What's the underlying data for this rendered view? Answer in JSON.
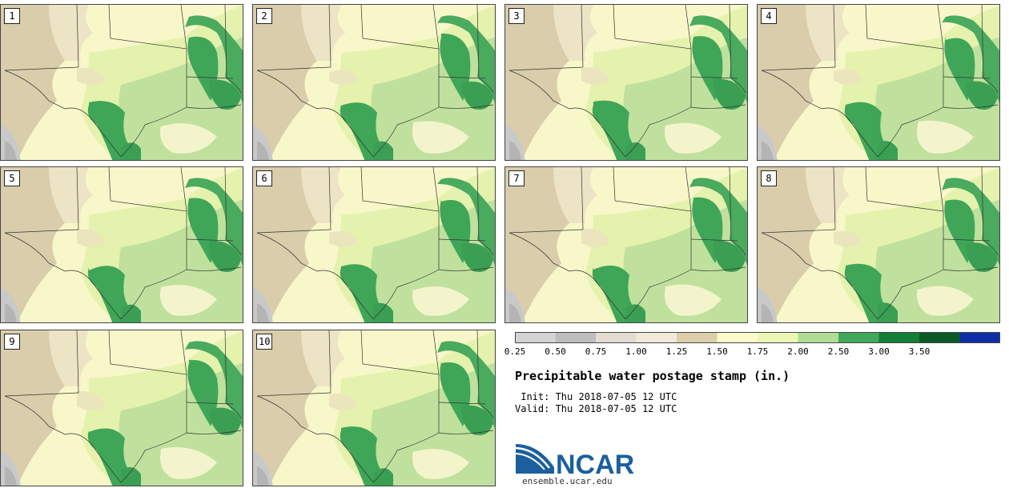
{
  "stamps": [
    {
      "label": "1"
    },
    {
      "label": "2"
    },
    {
      "label": "3"
    },
    {
      "label": "4"
    },
    {
      "label": "5"
    },
    {
      "label": "6"
    },
    {
      "label": "7"
    },
    {
      "label": "8"
    },
    {
      "label": "9"
    },
    {
      "label": "10"
    }
  ],
  "colorbar": {
    "ticks": [
      "0.25",
      "0.50",
      "0.75",
      "1.00",
      "1.25",
      "1.50",
      "1.75",
      "2.00",
      "2.50",
      "3.00",
      "3.50"
    ],
    "bins": [
      {
        "from": 0.25,
        "to": 0.5,
        "color": "#d4d4d4"
      },
      {
        "from": 0.5,
        "to": 0.75,
        "color": "#bdbdbd"
      },
      {
        "from": 0.75,
        "to": 1.0,
        "color": "#e3ddd1"
      },
      {
        "from": 1.0,
        "to": 1.25,
        "color": "#f1ead8"
      },
      {
        "from": 1.25,
        "to": 1.5,
        "color": "#dccdab"
      },
      {
        "from": 1.5,
        "to": 1.75,
        "color": "#fcfccb"
      },
      {
        "from": 1.75,
        "to": 2.0,
        "color": "#ecf7b6"
      },
      {
        "from": 2.0,
        "to": 2.5,
        "color": "#b0dd93"
      },
      {
        "from": 2.5,
        "to": 3.0,
        "color": "#41a85b"
      },
      {
        "from": 3.0,
        "to": 3.5,
        "color": "#137e37"
      },
      {
        "from": 3.5,
        "to": 4.0,
        "color": "#0a5a26"
      },
      {
        "from": 4.0,
        "to": 4.5,
        "color": "#0d2ea6"
      }
    ]
  },
  "title": "Precipitable water postage stamp (in.)",
  "init_line": " Init: Thu 2018-07-05 12 UTC",
  "valid_line": "Valid: Thu 2018-07-05 12 UTC",
  "logo_text": "NCAR",
  "site": "ensemble.ucar.edu"
}
